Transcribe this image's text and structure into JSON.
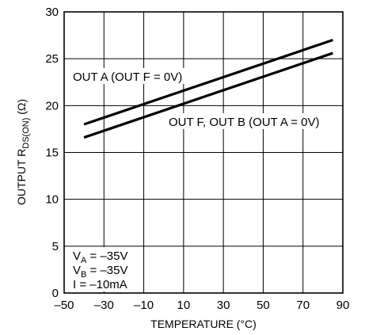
{
  "chart_data": {
    "type": "line",
    "xlabel": "TEMPERATURE (°C)",
    "ylabel": {
      "prefix": "OUTPUT R",
      "subscript": "DS(ON)",
      "suffix": " (Ω)"
    },
    "xlim": [
      -50,
      90
    ],
    "ylim": [
      0,
      30
    ],
    "xticks": [
      "–50",
      "–30",
      "–10",
      "10",
      "30",
      "50",
      "70",
      "90"
    ],
    "yticks": [
      "0",
      "5",
      "10",
      "15",
      "20",
      "25",
      "30"
    ],
    "grid": true,
    "series": [
      {
        "name": "OUT A (OUT F = 0V)",
        "x": [
          -40,
          85
        ],
        "y": [
          18.0,
          27.0
        ]
      },
      {
        "name": "OUT F, OUT B (OUT A = 0V)",
        "x": [
          -40,
          85
        ],
        "y": [
          16.6,
          25.6
        ]
      }
    ],
    "conditions": [
      {
        "main": "V",
        "sub": "A",
        "rest": " = –35V"
      },
      {
        "main": "V",
        "sub": "B",
        "rest": " = –35V"
      },
      {
        "main": "I = –10mA",
        "sub": "",
        "rest": ""
      }
    ]
  }
}
